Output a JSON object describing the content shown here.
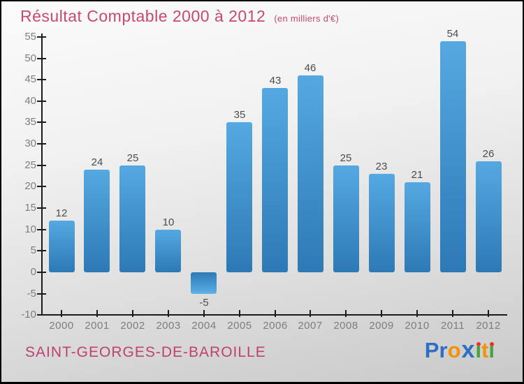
{
  "title": {
    "main": "Résultat Comptable 2000 à 2012",
    "subtitle": "(en milliers d'€)"
  },
  "footer": {
    "commune": "SAINT-GEORGES-DE-BAROILLE"
  },
  "logo": {
    "name": "Proxiti",
    "letters": [
      {
        "ch": "P",
        "color": "#2e6ec5"
      },
      {
        "ch": "r",
        "color": "#2e6ec5"
      },
      {
        "ch": "o",
        "color": "#f39206"
      },
      {
        "ch": "x",
        "color": "#2e6ec5",
        "bold_x": true
      },
      {
        "ch": "i",
        "color": "#3fa63c",
        "dot": true,
        "dot_color": "#e63329"
      },
      {
        "ch": "t",
        "color": "#f39206"
      },
      {
        "ch": "i",
        "color": "#3fa63c",
        "dot": true,
        "dot_color": "#e63329"
      }
    ]
  },
  "colors": {
    "title_pink": "#c6496e",
    "commune_pink": "#bf4072",
    "axis": "#1b1b1b",
    "tick_label_gray": "#7d7d7d",
    "value_label_gray": "#4c4c4c",
    "bar_light": "#55a9e0",
    "bar_dark": "#2d79b6",
    "bar_edge_light": "#6ab6e8"
  },
  "chart_data": {
    "type": "bar",
    "title": "Résultat Comptable 2000 à 2012",
    "subtitle": "(en milliers d'€)",
    "unit": "milliers d'€",
    "categories": [
      "2000",
      "2001",
      "2002",
      "2003",
      "2004",
      "2005",
      "2006",
      "2007",
      "2008",
      "2009",
      "2010",
      "2011",
      "2012"
    ],
    "values": [
      12,
      24,
      25,
      10,
      -5,
      35,
      43,
      46,
      25,
      23,
      21,
      54,
      26
    ],
    "ylim": [
      -10,
      55
    ],
    "ytick_step": 5,
    "yticks": [
      -10,
      -5,
      0,
      5,
      10,
      15,
      20,
      25,
      30,
      35,
      40,
      45,
      50,
      55
    ],
    "grid": false,
    "legend_position": "none",
    "value_labels": true,
    "negative_value_labels_below_bar": true
  }
}
